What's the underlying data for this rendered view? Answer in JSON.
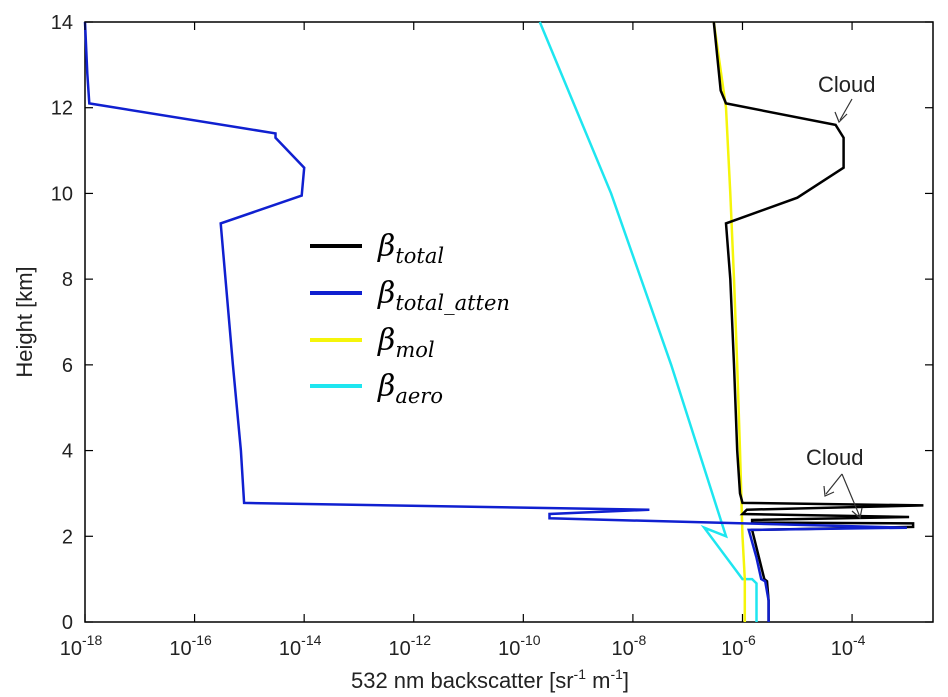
{
  "chart_data": {
    "type": "line",
    "xlabel": "532 nm backscatter [sr",
    "xlabel_sup1": "-1",
    "xlabel_mid": " m",
    "xlabel_sup2": "-1",
    "xlabel_end": "]",
    "ylabel": "Height [km]",
    "x_scale": "log",
    "xlim": [
      1e-18,
      0.003
    ],
    "ylim": [
      0,
      14
    ],
    "x_ticks": [
      {
        "base": "10",
        "exp": "-18",
        "value": 1e-18
      },
      {
        "base": "10",
        "exp": "-16",
        "value": 1e-16
      },
      {
        "base": "10",
        "exp": "-14",
        "value": 1e-14
      },
      {
        "base": "10",
        "exp": "-12",
        "value": 1e-12
      },
      {
        "base": "10",
        "exp": "-10",
        "value": 1e-10
      },
      {
        "base": "10",
        "exp": "-8",
        "value": 1e-08
      },
      {
        "base": "10",
        "exp": "-6",
        "value": 1e-06
      },
      {
        "base": "10",
        "exp": "-4",
        "value": 0.0001
      }
    ],
    "y_ticks": [
      {
        "label": "0",
        "value": 0
      },
      {
        "label": "2",
        "value": 2
      },
      {
        "label": "4",
        "value": 4
      },
      {
        "label": "6",
        "value": 6
      },
      {
        "label": "8",
        "value": 8
      },
      {
        "label": "10",
        "value": 10
      },
      {
        "label": "12",
        "value": 12
      },
      {
        "label": "14",
        "value": 14
      }
    ],
    "grid": false,
    "legend_position": "center-left",
    "series": [
      {
        "name_base": "β",
        "name_sub": "total",
        "color": "#000000",
        "points": [
          [
            3e-07,
            14
          ],
          [
            4e-07,
            12.4
          ],
          [
            5e-07,
            12.1
          ],
          [
            5e-05,
            11.6
          ],
          [
            7e-05,
            11.3
          ],
          [
            7e-05,
            10.6
          ],
          [
            1e-05,
            9.9
          ],
          [
            5e-07,
            9.3
          ],
          [
            6e-07,
            8
          ],
          [
            7e-07,
            6
          ],
          [
            8e-07,
            4
          ],
          [
            9e-07,
            3
          ],
          [
            1e-06,
            2.78
          ],
          [
            0.002,
            2.72
          ],
          [
            1.2e-06,
            2.62
          ],
          [
            1e-06,
            2.52
          ],
          [
            0.0011,
            2.45
          ],
          [
            1.5e-06,
            2.38
          ],
          [
            1.5e-06,
            2.32
          ],
          [
            0.0013,
            2.3
          ],
          [
            0.0013,
            2.22
          ],
          [
            1.5e-06,
            2.15
          ],
          [
            2e-06,
            1.5
          ],
          [
            2.5e-06,
            1.0
          ],
          [
            2.8e-06,
            0.95
          ],
          [
            3e-06,
            0.5
          ],
          [
            3e-06,
            0
          ]
        ]
      },
      {
        "name_base": "β",
        "name_sub": "total_atten",
        "color": "#1020d0",
        "points": [
          [
            1e-18,
            14
          ],
          [
            1.1e-18,
            12.8
          ],
          [
            1.2e-18,
            12.1
          ],
          [
            3e-15,
            11.4
          ],
          [
            3e-15,
            11.3
          ],
          [
            1e-14,
            10.6
          ],
          [
            9e-15,
            9.95
          ],
          [
            3e-16,
            9.3
          ],
          [
            5e-16,
            6
          ],
          [
            7e-16,
            4
          ],
          [
            8e-16,
            2.78
          ],
          [
            2e-08,
            2.62
          ],
          [
            3e-10,
            2.52
          ],
          [
            3e-10,
            2.42
          ],
          [
            0.001,
            2.2
          ],
          [
            1.3e-06,
            2.15
          ],
          [
            1.8e-06,
            1.5
          ],
          [
            2.2e-06,
            1.0
          ],
          [
            2.6e-06,
            0.95
          ],
          [
            3e-06,
            0.5
          ],
          [
            3e-06,
            0
          ]
        ]
      },
      {
        "name_base": "β",
        "name_sub": "mol",
        "color": "#f5f50a",
        "points": [
          [
            3e-07,
            14
          ],
          [
            5e-07,
            12
          ],
          [
            6e-07,
            10
          ],
          [
            7e-07,
            8
          ],
          [
            8e-07,
            6
          ],
          [
            9e-07,
            4
          ],
          [
            1e-06,
            2
          ],
          [
            1.1e-06,
            1
          ],
          [
            1.1e-06,
            0
          ]
        ]
      },
      {
        "name_base": "β",
        "name_sub": "aero",
        "color": "#1ee6f0",
        "points": [
          [
            2e-10,
            14
          ],
          [
            4e-09,
            10
          ],
          [
            5e-08,
            6
          ],
          [
            5e-07,
            2
          ],
          [
            2e-07,
            2.2
          ],
          [
            1e-06,
            1.0
          ],
          [
            1.5e-06,
            1.0
          ],
          [
            1.8e-06,
            0.9
          ],
          [
            1.8e-06,
            0
          ]
        ]
      }
    ],
    "annotations": [
      {
        "text": "Cloud",
        "target_height": 11.5
      },
      {
        "text": "Cloud",
        "target_height": 2.5
      }
    ]
  }
}
